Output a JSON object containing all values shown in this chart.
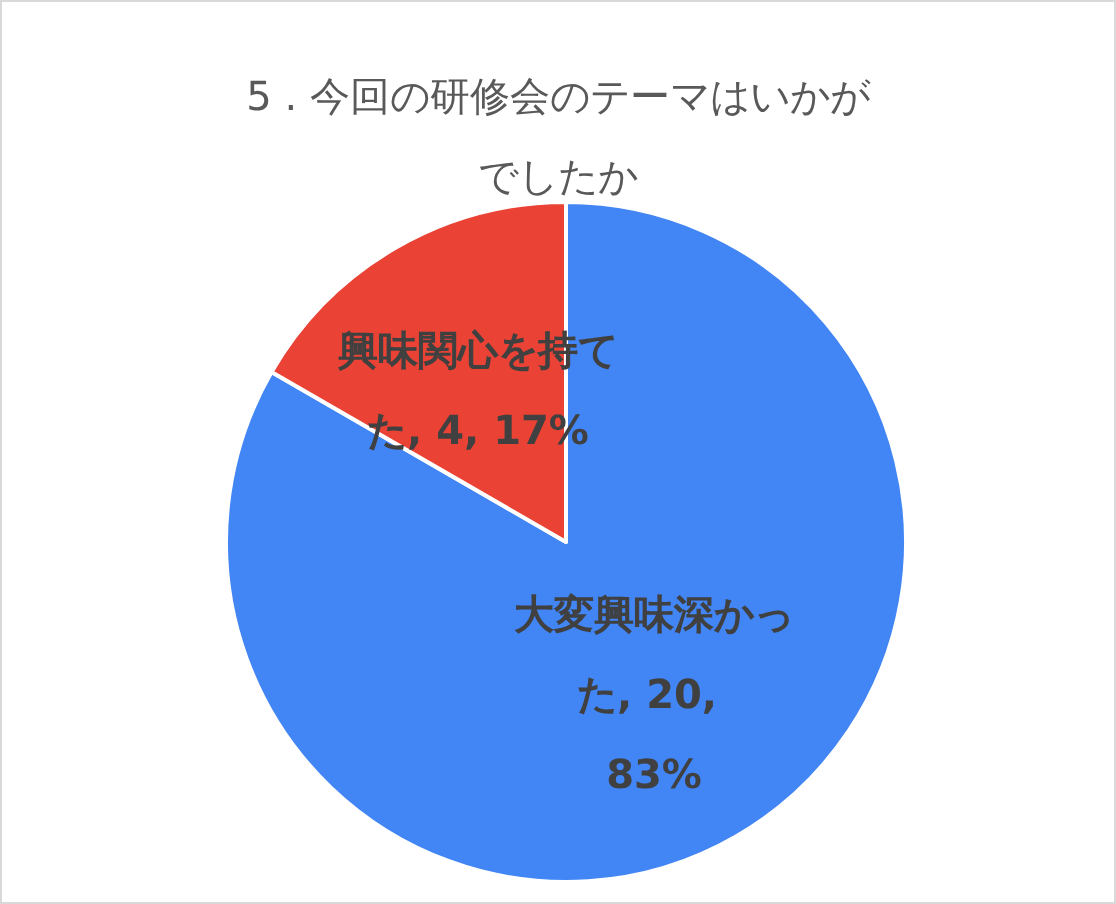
{
  "chart_data": {
    "type": "pie",
    "title": "5 . 今回の研修会のテーマはいかがでしたか",
    "categories": [
      "大変興味深かった",
      "興味関心を持てた"
    ],
    "values": [
      20,
      4
    ],
    "value_labels": [
      "20, 83%",
      "4, 17%"
    ],
    "colors": [
      "#4285f4",
      "#ea4335"
    ],
    "legend": false
  }
}
